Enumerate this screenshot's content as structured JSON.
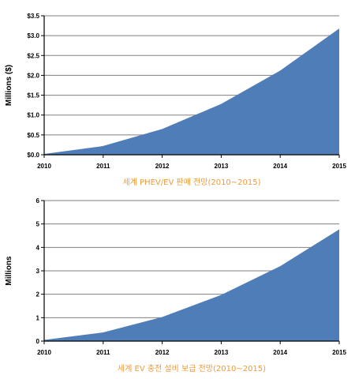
{
  "chart_data": [
    {
      "type": "area",
      "title": "세계 PHEV/EV 판매 전망(2010~2015)",
      "xlabel": "",
      "ylabel": "Millions ($)",
      "x": [
        "2010",
        "2011",
        "2012",
        "2013",
        "2014",
        "2015"
      ],
      "values": [
        0.02,
        0.22,
        0.65,
        1.28,
        2.12,
        3.18
      ],
      "ylim": [
        0,
        3.5
      ],
      "y_ticks": [
        "$0.0",
        "$0.5",
        "$1.0",
        "$1.5",
        "$2.0",
        "$2.5",
        "$3.0",
        "$3.5"
      ],
      "y_tick_values": [
        0,
        0.5,
        1.0,
        1.5,
        2.0,
        2.5,
        3.0,
        3.5
      ],
      "grid": true,
      "color": "#4f7db7",
      "title_color": "#f29a38"
    },
    {
      "type": "area",
      "title": "세계 EV 충전 설비 보급 전망(2010~2015)",
      "xlabel": "",
      "ylabel": "Millions",
      "x": [
        "2010",
        "2011",
        "2012",
        "2013",
        "2014",
        "2015"
      ],
      "values": [
        0.05,
        0.37,
        1.03,
        1.97,
        3.2,
        4.77
      ],
      "ylim": [
        0,
        6
      ],
      "y_ticks": [
        "0",
        "1",
        "2",
        "3",
        "4",
        "5",
        "6"
      ],
      "y_tick_values": [
        0,
        1,
        2,
        3,
        4,
        5,
        6
      ],
      "grid": true,
      "color": "#4f7db7",
      "title_color": "#f29a38"
    }
  ]
}
